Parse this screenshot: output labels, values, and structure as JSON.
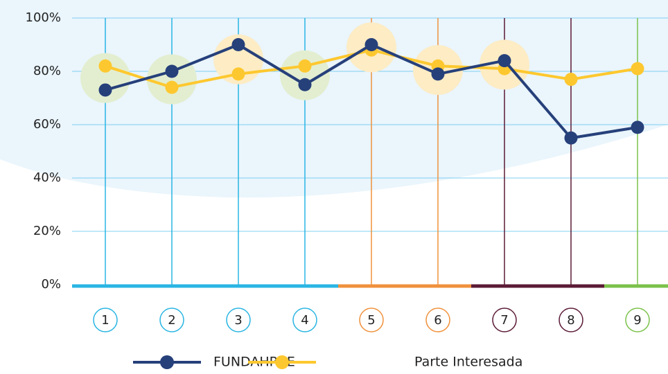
{
  "chart_data": {
    "type": "line",
    "categories": [
      "1",
      "2",
      "3",
      "4",
      "5",
      "6",
      "7",
      "8",
      "9"
    ],
    "category_colors": [
      "#29b5e3",
      "#29b5e3",
      "#29b5e3",
      "#29b5e3",
      "#f0913c",
      "#f0913c",
      "#5b1a35",
      "#5b1a35",
      "#7bc24a"
    ],
    "halo_colors": [
      "#e3eed0",
      "#e3eed0",
      "#fdecc4",
      "#e3eed0",
      "#fdecc4",
      "#fdecc4",
      "#fdecc4",
      null,
      null
    ],
    "series": [
      {
        "name": "FUNDAHRSE",
        "color": "#26407a",
        "values": [
          73,
          80,
          90,
          75,
          90,
          79,
          84,
          55,
          59
        ]
      },
      {
        "name": "Parte Interesada",
        "color": "#fdc82f",
        "values": [
          82,
          74,
          79,
          82,
          88,
          82,
          81,
          77,
          81
        ]
      }
    ],
    "ylim": [
      0,
      100
    ],
    "yticks": [
      {
        "value": 0,
        "label": "0%"
      },
      {
        "value": 20,
        "label": "20%"
      },
      {
        "value": 40,
        "label": "40%"
      },
      {
        "value": 60,
        "label": "60%"
      },
      {
        "value": 80,
        "label": "80%"
      },
      {
        "value": 100,
        "label": "100%"
      }
    ],
    "grid": true
  }
}
